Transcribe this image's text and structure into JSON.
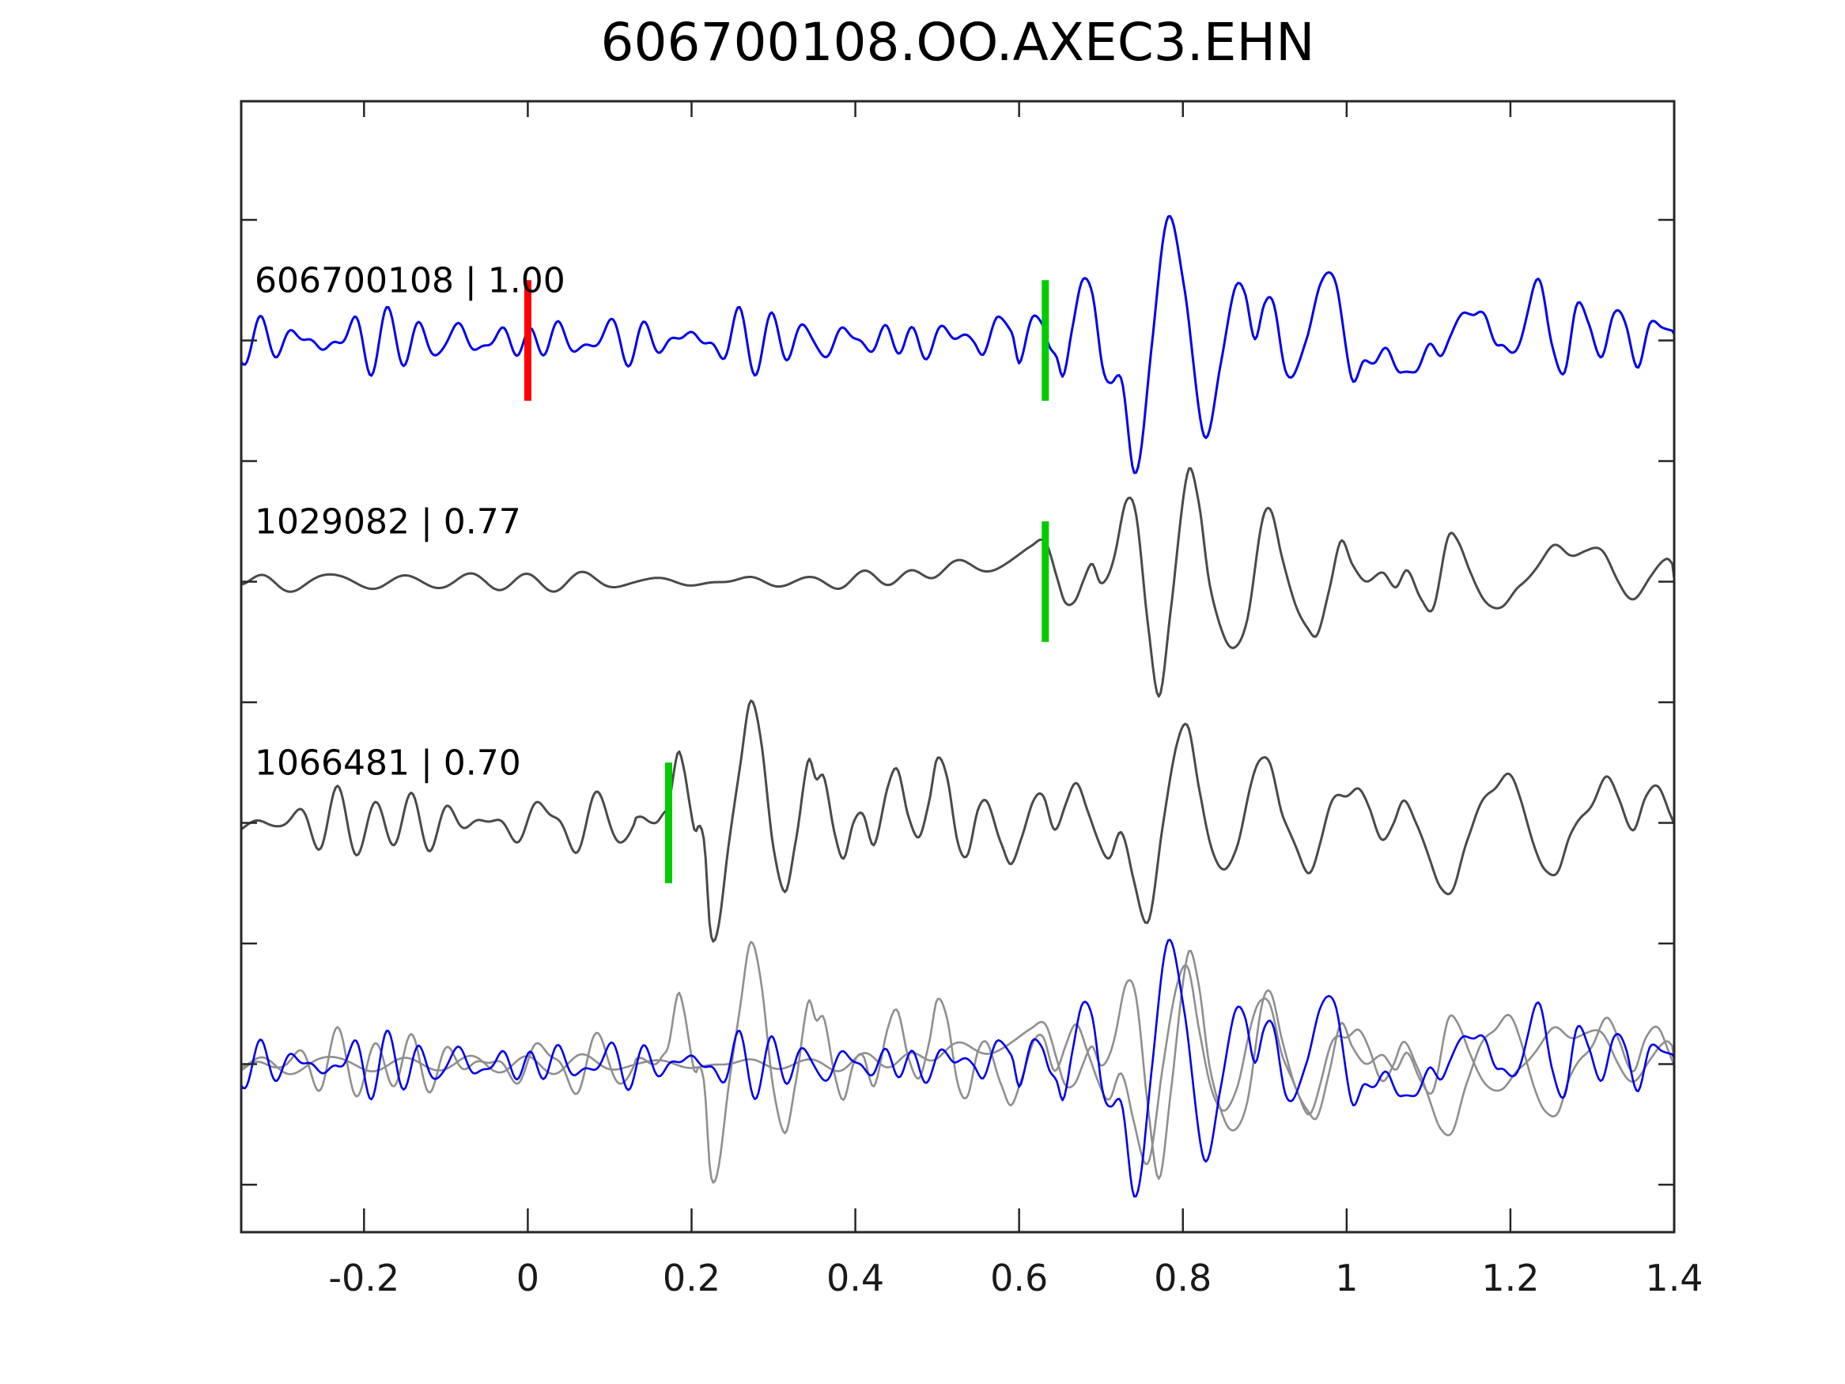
{
  "title": "606700108.OO.AXEC3.EHN",
  "axes": {
    "x_tick_labels": [
      "-0.2",
      "0",
      "0.2",
      "0.4",
      "0.6",
      "0.8",
      "1",
      "1.2",
      "1.4"
    ],
    "x_tick_values": [
      -0.2,
      0,
      0.2,
      0.4,
      0.6,
      0.8,
      1,
      1.2,
      1.4
    ],
    "x_range": [
      -0.35,
      1.4
    ],
    "y_range": [
      -0.7,
      4.0
    ],
    "y_tick_values": [
      -0.5,
      0,
      0.5,
      1,
      1.5,
      2,
      2.5,
      3,
      3.5
    ],
    "y_tick_labels_shown": false,
    "grid": false,
    "tick_direction": "in",
    "spine_color": "#262626"
  },
  "chart_data": {
    "type": "line",
    "subtype": "seismic-waveform-correlation",
    "title": "606700108.OO.AXEC3.EHN",
    "xlabel": "",
    "ylabel": "",
    "xlim": [
      -0.35,
      1.4
    ],
    "ylim": [
      -0.7,
      4.0
    ],
    "legend_position": "none",
    "colors": {
      "template": "#0000ee",
      "detection": "#4a4a4a",
      "overlay_gray": "#8f8f8f",
      "pick_reference": "#ff0000",
      "pick_detected": "#00cc00"
    },
    "series": [
      {
        "id": "606700108",
        "label": "606700108 | 1.00",
        "event_id": "606700108",
        "correlation": 1.0,
        "color": "#0000ee",
        "offset": 3,
        "picks": [
          {
            "time": 0.0,
            "color": "#ff0000",
            "half_height": 0.25
          },
          {
            "time": 0.632,
            "color": "#00cc00",
            "half_height": 0.25
          }
        ],
        "noise": {
          "seed": 7,
          "freq_scale": 1.0,
          "envelope": [
            [
              -0.35,
              0.085
            ],
            [
              0.52,
              0.085
            ],
            [
              0.56,
              0.045
            ],
            [
              0.62,
              0.035
            ],
            [
              1.4,
              0.035
            ]
          ]
        },
        "keypoints": [
          [
            0.52,
            0.0
          ],
          [
            0.545,
            0.03
          ],
          [
            0.558,
            -0.03
          ],
          [
            0.575,
            0.05
          ],
          [
            0.591,
            0.075
          ],
          [
            0.601,
            -0.09
          ],
          [
            0.617,
            0.09
          ],
          [
            0.628,
            0.08
          ],
          [
            0.637,
            -0.02
          ],
          [
            0.646,
            -0.06
          ],
          [
            0.654,
            -0.14
          ],
          [
            0.665,
            0.04
          ],
          [
            0.677,
            0.24
          ],
          [
            0.689,
            0.18
          ],
          [
            0.701,
            -0.06
          ],
          [
            0.712,
            -0.14
          ],
          [
            0.725,
            -0.22
          ],
          [
            0.741,
            -0.52
          ],
          [
            0.762,
            -0.05
          ],
          [
            0.782,
            0.54
          ],
          [
            0.801,
            0.22
          ],
          [
            0.825,
            -0.38
          ],
          [
            0.846,
            -0.1
          ],
          [
            0.863,
            0.2
          ],
          [
            0.876,
            0.19
          ],
          [
            0.888,
            0.03
          ],
          [
            0.899,
            0.13
          ],
          [
            0.912,
            0.14
          ],
          [
            0.926,
            -0.13
          ],
          [
            0.936,
            -0.17
          ],
          [
            0.951,
            0.03
          ],
          [
            0.968,
            0.235
          ],
          [
            0.986,
            0.24
          ],
          [
            1.006,
            -0.17
          ],
          [
            1.021,
            -0.04
          ],
          [
            1.036,
            -0.115
          ],
          [
            1.051,
            -0.04
          ],
          [
            1.066,
            -0.12
          ],
          [
            1.084,
            -0.14
          ],
          [
            1.101,
            -0.02
          ],
          [
            1.115,
            -0.05
          ],
          [
            1.126,
            0.02
          ],
          [
            1.141,
            0.12
          ],
          [
            1.156,
            0.06
          ],
          [
            1.171,
            0.135
          ],
          [
            1.186,
            -0.02
          ],
          [
            1.201,
            -0.09
          ],
          [
            1.221,
            0.14
          ],
          [
            1.236,
            0.22
          ],
          [
            1.251,
            0.0
          ],
          [
            1.266,
            -0.12
          ],
          [
            1.281,
            0.12
          ],
          [
            1.296,
            0.07
          ],
          [
            1.311,
            -0.06
          ],
          [
            1.326,
            0.11
          ],
          [
            1.341,
            0.05
          ],
          [
            1.356,
            -0.09
          ],
          [
            1.371,
            0.055
          ],
          [
            1.386,
            0.08
          ],
          [
            1.4,
            0.01
          ]
        ]
      },
      {
        "id": "1029082",
        "label": "1029082 | 0.77",
        "event_id": "1029082",
        "correlation": 0.77,
        "color": "#4a4a4a",
        "offset": 2,
        "picks": [
          {
            "time": 0.632,
            "color": "#00cc00",
            "half_height": 0.25
          }
        ],
        "noise": {
          "seed": 101,
          "freq_scale": 0.55,
          "envelope": [
            [
              -0.35,
              0.032
            ],
            [
              0.38,
              0.032
            ],
            [
              0.5,
              0.035
            ],
            [
              0.6,
              0.025
            ],
            [
              1.4,
              0.025
            ]
          ]
        },
        "keypoints": [
          [
            0.38,
            0.0
          ],
          [
            0.42,
            0.01
          ],
          [
            0.46,
            0.03
          ],
          [
            0.5,
            0.04
          ],
          [
            0.55,
            0.06
          ],
          [
            0.59,
            0.1
          ],
          [
            0.615,
            0.13
          ],
          [
            0.632,
            0.145
          ],
          [
            0.646,
            0.02
          ],
          [
            0.656,
            -0.07
          ],
          [
            0.668,
            -0.06
          ],
          [
            0.679,
            0.02
          ],
          [
            0.689,
            0.07
          ],
          [
            0.699,
            -0.02
          ],
          [
            0.708,
            0.0
          ],
          [
            0.717,
            0.1
          ],
          [
            0.731,
            0.345
          ],
          [
            0.743,
            0.3
          ],
          [
            0.757,
            -0.15
          ],
          [
            0.771,
            -0.49
          ],
          [
            0.785,
            -0.15
          ],
          [
            0.806,
            0.47
          ],
          [
            0.819,
            0.36
          ],
          [
            0.833,
            -0.02
          ],
          [
            0.85,
            -0.255
          ],
          [
            0.863,
            -0.28
          ],
          [
            0.879,
            -0.12
          ],
          [
            0.896,
            0.255
          ],
          [
            0.907,
            0.29
          ],
          [
            0.921,
            0.08
          ],
          [
            0.937,
            -0.1
          ],
          [
            0.953,
            -0.19
          ],
          [
            0.964,
            -0.21
          ],
          [
            0.979,
            -0.02
          ],
          [
            0.993,
            0.17
          ],
          [
            1.007,
            0.06
          ],
          [
            1.023,
            -0.01
          ],
          [
            1.044,
            0.04
          ],
          [
            1.06,
            -0.02
          ],
          [
            1.074,
            0.055
          ],
          [
            1.091,
            -0.06
          ],
          [
            1.106,
            -0.11
          ],
          [
            1.124,
            0.17
          ],
          [
            1.136,
            0.16
          ],
          [
            1.151,
            0.05
          ],
          [
            1.171,
            -0.08
          ],
          [
            1.191,
            -0.12
          ],
          [
            1.211,
            -0.02
          ],
          [
            1.231,
            0.08
          ],
          [
            1.251,
            0.13
          ],
          [
            1.271,
            0.1
          ],
          [
            1.291,
            0.14
          ],
          [
            1.311,
            0.12
          ],
          [
            1.331,
            0.02
          ],
          [
            1.351,
            -0.05
          ],
          [
            1.371,
            0.0
          ],
          [
            1.391,
            0.07
          ],
          [
            1.4,
            0.05
          ]
        ]
      },
      {
        "id": "1066481",
        "label": "1066481 | 0.70",
        "event_id": "1066481",
        "correlation": 0.7,
        "color": "#4a4a4a",
        "offset": 1,
        "picks": [
          {
            "time": 0.172,
            "color": "#00cc00",
            "half_height": 0.25
          }
        ],
        "noise": {
          "seed": 23,
          "freq_scale": 0.8,
          "envelope": [
            [
              -0.35,
              0.105
            ],
            [
              0.11,
              0.105
            ],
            [
              0.15,
              0.05
            ],
            [
              0.2,
              0.03
            ],
            [
              1.4,
              0.03
            ]
          ]
        },
        "keypoints": [
          [
            0.13,
            0.02
          ],
          [
            0.145,
            -0.05
          ],
          [
            0.155,
            -0.02
          ],
          [
            0.165,
            0.08
          ],
          [
            0.172,
            0.13
          ],
          [
            0.183,
            0.3
          ],
          [
            0.19,
            0.22
          ],
          [
            0.198,
            0.05
          ],
          [
            0.204,
            -0.05
          ],
          [
            0.21,
            -0.02
          ],
          [
            0.216,
            -0.1
          ],
          [
            0.223,
            -0.45
          ],
          [
            0.232,
            -0.44
          ],
          [
            0.245,
            -0.1
          ],
          [
            0.26,
            0.25
          ],
          [
            0.272,
            0.51
          ],
          [
            0.285,
            0.35
          ],
          [
            0.3,
            -0.12
          ],
          [
            0.314,
            -0.3
          ],
          [
            0.327,
            -0.04
          ],
          [
            0.342,
            0.25
          ],
          [
            0.352,
            0.14
          ],
          [
            0.362,
            0.17
          ],
          [
            0.375,
            -0.02
          ],
          [
            0.386,
            -0.14
          ],
          [
            0.398,
            -0.02
          ],
          [
            0.41,
            0.04
          ],
          [
            0.423,
            -0.06
          ],
          [
            0.44,
            0.12
          ],
          [
            0.452,
            0.21
          ],
          [
            0.465,
            0.05
          ],
          [
            0.478,
            -0.06
          ],
          [
            0.49,
            0.08
          ],
          [
            0.5,
            0.27
          ],
          [
            0.512,
            0.19
          ],
          [
            0.525,
            -0.08
          ],
          [
            0.537,
            -0.14
          ],
          [
            0.55,
            0.04
          ],
          [
            0.562,
            0.09
          ],
          [
            0.578,
            -0.06
          ],
          [
            0.59,
            -0.17
          ],
          [
            0.603,
            -0.07
          ],
          [
            0.617,
            0.06
          ],
          [
            0.63,
            0.1
          ],
          [
            0.643,
            0.01
          ],
          [
            0.657,
            0.09
          ],
          [
            0.67,
            0.14
          ],
          [
            0.683,
            0.04
          ],
          [
            0.697,
            -0.06
          ],
          [
            0.71,
            -0.12
          ],
          [
            0.724,
            -0.06
          ],
          [
            0.74,
            -0.26
          ],
          [
            0.758,
            -0.38
          ],
          [
            0.775,
            -0.02
          ],
          [
            0.792,
            0.31
          ],
          [
            0.806,
            0.4
          ],
          [
            0.82,
            0.14
          ],
          [
            0.835,
            -0.11
          ],
          [
            0.85,
            -0.2
          ],
          [
            0.865,
            -0.09
          ],
          [
            0.88,
            0.11
          ],
          [
            0.895,
            0.23
          ],
          [
            0.908,
            0.26
          ],
          [
            0.923,
            0.04
          ],
          [
            0.938,
            -0.13
          ],
          [
            0.953,
            -0.2
          ],
          [
            0.968,
            -0.07
          ],
          [
            0.982,
            0.06
          ],
          [
            0.997,
            0.13
          ],
          [
            1.012,
            0.16
          ],
          [
            1.027,
            0.04
          ],
          [
            1.042,
            -0.06
          ],
          [
            1.057,
            0.0
          ],
          [
            1.07,
            0.09
          ],
          [
            1.085,
            0.0
          ],
          [
            1.1,
            -0.13
          ],
          [
            1.115,
            -0.26
          ],
          [
            1.13,
            -0.3
          ],
          [
            1.147,
            -0.08
          ],
          [
            1.163,
            0.09
          ],
          [
            1.18,
            0.16
          ],
          [
            1.196,
            0.19
          ],
          [
            1.212,
            0.07
          ],
          [
            1.228,
            -0.06
          ],
          [
            1.243,
            -0.18
          ],
          [
            1.258,
            -0.22
          ],
          [
            1.273,
            -0.07
          ],
          [
            1.288,
            0.06
          ],
          [
            1.303,
            0.11
          ],
          [
            1.318,
            0.16
          ],
          [
            1.333,
            0.09
          ],
          [
            1.35,
            -0.02
          ],
          [
            1.365,
            0.11
          ],
          [
            1.38,
            0.15
          ],
          [
            1.395,
            0.04
          ],
          [
            1.4,
            0.0
          ]
        ]
      },
      {
        "id": "overlay",
        "label": "",
        "offset": 0,
        "picks": [],
        "components": [
          {
            "ref": "1029082",
            "color": "#8f8f8f"
          },
          {
            "ref": "1066481",
            "color": "#8f8f8f"
          },
          {
            "ref": "606700108",
            "color": "#0000ee"
          }
        ]
      }
    ]
  }
}
